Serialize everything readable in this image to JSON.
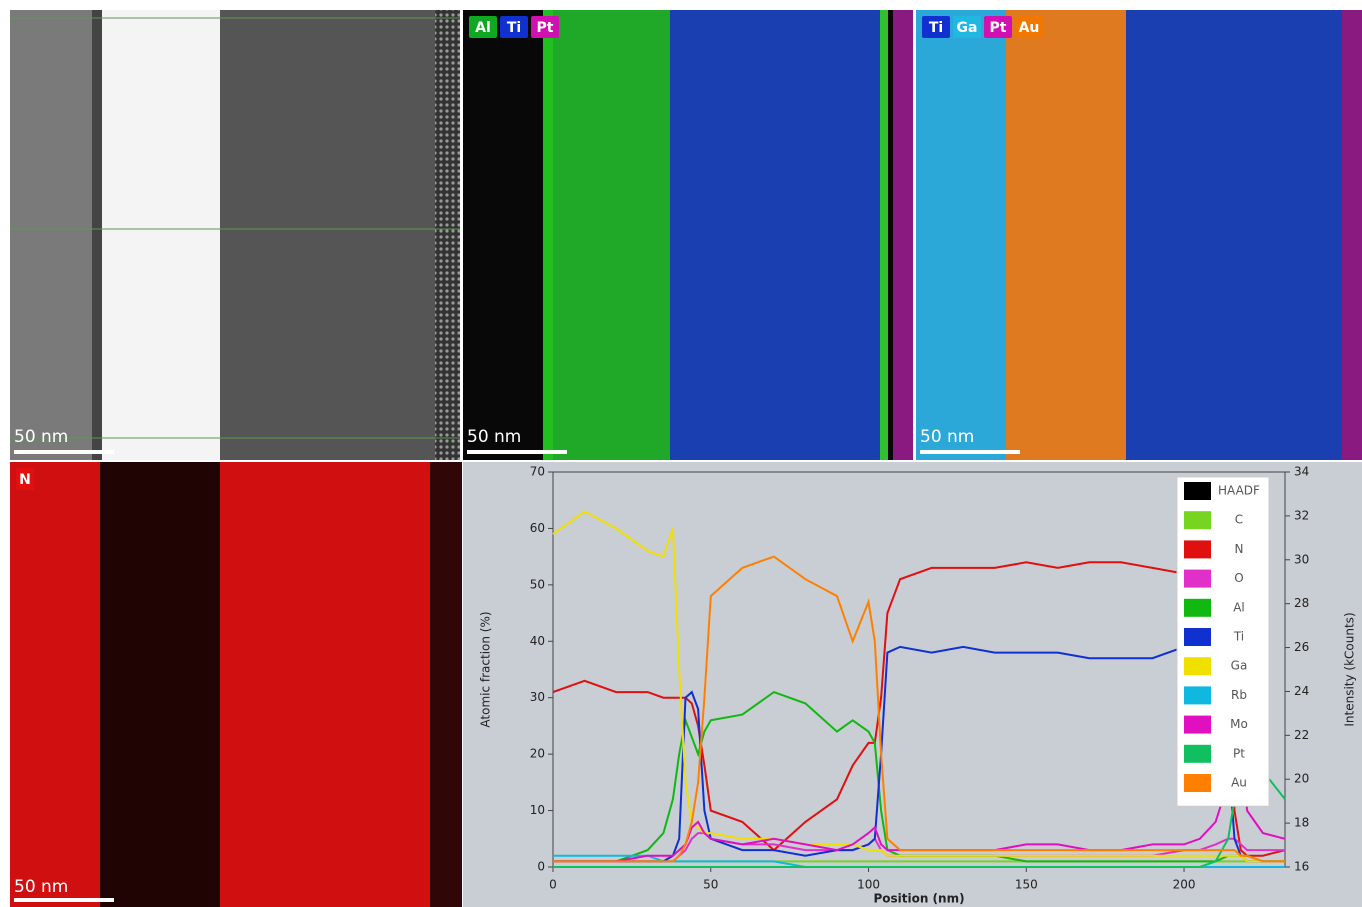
{
  "panels": [
    {
      "labels": [],
      "scale": "50 nm"
    },
    {
      "labels": [
        {
          "text": "Al",
          "color": "#10a820"
        },
        {
          "text": "Ti",
          "color": "#1030d0"
        },
        {
          "text": "Pt",
          "color": "#d010b0"
        }
      ],
      "scale": "50 nm"
    },
    {
      "labels": [
        {
          "text": "Ti",
          "color": "#1030d0"
        },
        {
          "text": "Ga",
          "color": "#20b8e0"
        },
        {
          "text": "Pt",
          "color": "#d010b0"
        },
        {
          "text": "Au",
          "color": "#f07800"
        }
      ],
      "scale": "50 nm"
    },
    {
      "labels": [
        {
          "text": "N",
          "color": "#e01010"
        }
      ],
      "scale": "50 nm"
    }
  ],
  "chart_data": {
    "type": "line",
    "xlabel": "Position (nm)",
    "ylabel": "Atomic fraction (%)",
    "y2label": "Intensity (kCounts)",
    "xlim": [
      0,
      232
    ],
    "xticks": [
      0,
      50,
      100,
      150,
      200
    ],
    "ylim": [
      0,
      70
    ],
    "yticks": [
      0,
      10,
      20,
      30,
      40,
      50,
      60,
      70
    ],
    "y2lim": [
      16,
      34
    ],
    "y2ticks": [
      16,
      18,
      20,
      22,
      24,
      26,
      28,
      30,
      32,
      34
    ],
    "legend": "upper right",
    "x": [
      0,
      10,
      20,
      30,
      35,
      38,
      40,
      42,
      44,
      46,
      48,
      50,
      60,
      70,
      80,
      90,
      95,
      100,
      102,
      104,
      106,
      110,
      120,
      130,
      140,
      150,
      160,
      170,
      180,
      190,
      200,
      205,
      210,
      214,
      216,
      218,
      220,
      225,
      232
    ],
    "series": [
      {
        "name": "HAADF",
        "color": "#000000",
        "axis": "y2",
        "values": [
          null,
          null,
          null,
          null,
          null,
          null,
          null,
          null,
          null,
          null,
          null,
          null,
          null,
          null,
          null,
          null,
          null,
          null,
          null,
          null,
          null,
          null,
          null,
          null,
          null,
          null,
          null,
          null,
          null,
          null,
          null,
          null,
          null,
          null,
          null,
          null,
          null,
          null,
          null
        ]
      },
      {
        "name": "C",
        "color": "#77d420",
        "values": [
          1,
          1,
          1,
          1,
          1,
          1,
          1,
          1,
          1,
          1,
          1,
          1,
          1,
          1,
          1,
          1,
          1,
          1,
          1,
          1,
          1,
          1,
          1,
          1,
          1,
          1,
          1,
          1,
          1,
          1,
          1,
          1,
          1,
          1,
          1,
          1,
          1,
          1,
          1
        ]
      },
      {
        "name": "N",
        "color": "#e01010",
        "values": [
          31,
          33,
          31,
          31,
          30,
          30,
          30,
          30,
          29,
          25,
          18,
          10,
          8,
          3,
          8,
          12,
          18,
          22,
          22,
          30,
          45,
          51,
          53,
          53,
          53,
          54,
          53,
          54,
          54,
          53,
          52,
          53,
          48,
          30,
          10,
          3,
          2,
          2,
          3
        ]
      },
      {
        "name": "O",
        "color": "#e030c8",
        "values": [
          1,
          1,
          1,
          1,
          1,
          1,
          2,
          3,
          5,
          6,
          6,
          5,
          4,
          4,
          3,
          3,
          3,
          4,
          5,
          3,
          2,
          2,
          2,
          2,
          2,
          2,
          2,
          2,
          2,
          2,
          3,
          3,
          4,
          5,
          5,
          4,
          3,
          3,
          3
        ]
      },
      {
        "name": "Al",
        "color": "#10b810",
        "values": [
          1,
          1,
          1,
          3,
          6,
          12,
          20,
          26,
          23,
          20,
          24,
          26,
          27,
          31,
          29,
          24,
          26,
          24,
          22,
          10,
          3,
          2,
          2,
          2,
          2,
          1,
          1,
          1,
          1,
          1,
          1,
          1,
          1,
          2,
          2,
          2,
          2,
          1,
          1
        ]
      },
      {
        "name": "Ti",
        "color": "#1030d0",
        "values": [
          1,
          1,
          1,
          1,
          1,
          2,
          5,
          30,
          31,
          28,
          10,
          5,
          3,
          3,
          2,
          3,
          3,
          4,
          5,
          20,
          38,
          39,
          38,
          39,
          38,
          38,
          38,
          37,
          37,
          37,
          39,
          40,
          38,
          20,
          5,
          2,
          1,
          1,
          1
        ]
      },
      {
        "name": "Ga",
        "color": "#f0e000",
        "values": [
          59,
          63,
          60,
          56,
          55,
          60,
          35,
          15,
          8,
          7,
          6,
          6,
          5,
          5,
          4,
          4,
          4,
          3,
          3,
          3,
          2,
          2,
          2,
          2,
          2,
          2,
          2,
          2,
          2,
          2,
          2,
          2,
          2,
          2,
          2,
          2,
          1,
          1,
          1
        ]
      },
      {
        "name": "Rb",
        "color": "#10b8e0",
        "values": [
          2,
          2,
          2,
          2,
          1,
          1,
          1,
          1,
          1,
          1,
          1,
          1,
          1,
          1,
          0,
          0,
          0,
          0,
          0,
          0,
          0,
          0,
          0,
          0,
          0,
          0,
          0,
          0,
          0,
          0,
          0,
          0,
          0,
          0,
          0,
          0,
          0,
          0,
          0
        ]
      },
      {
        "name": "Mo",
        "color": "#e010c0",
        "values": [
          1,
          1,
          1,
          2,
          2,
          2,
          3,
          4,
          7,
          8,
          6,
          5,
          4,
          5,
          4,
          3,
          4,
          6,
          7,
          4,
          3,
          3,
          3,
          3,
          3,
          4,
          4,
          3,
          3,
          4,
          4,
          5,
          8,
          15,
          22,
          24,
          10,
          6,
          5
        ]
      },
      {
        "name": "Pt",
        "color": "#10c060",
        "values": [
          0,
          0,
          0,
          0,
          0,
          0,
          0,
          0,
          0,
          0,
          0,
          0,
          0,
          0,
          0,
          0,
          0,
          0,
          0,
          0,
          0,
          0,
          0,
          0,
          0,
          0,
          0,
          0,
          0,
          0,
          0,
          0,
          1,
          5,
          12,
          20,
          25,
          17,
          12
        ]
      },
      {
        "name": "Au",
        "color": "#ff8000",
        "values": [
          1,
          1,
          1,
          1,
          1,
          1,
          2,
          4,
          8,
          15,
          30,
          48,
          53,
          55,
          51,
          48,
          40,
          47,
          40,
          20,
          5,
          3,
          3,
          3,
          3,
          3,
          3,
          3,
          3,
          3,
          3,
          3,
          3,
          3,
          3,
          2,
          2,
          1,
          1
        ]
      }
    ]
  }
}
